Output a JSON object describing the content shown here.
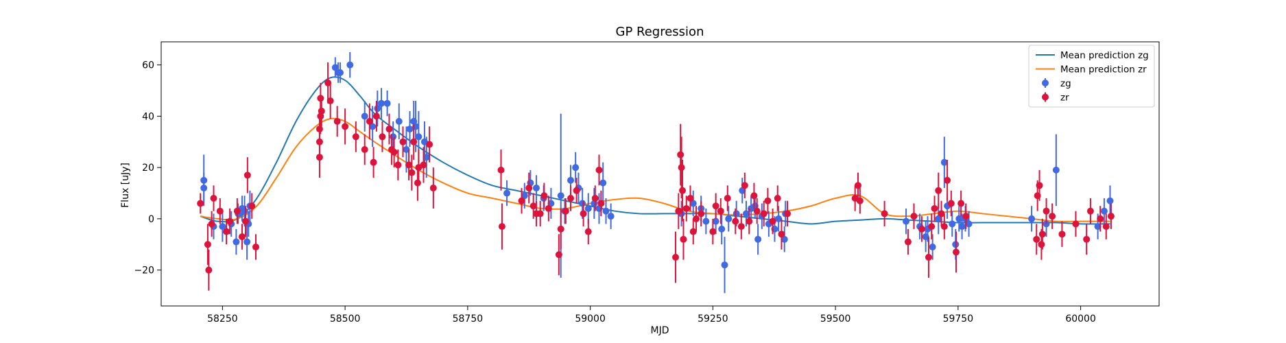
{
  "chart_data": {
    "type": "scatter",
    "title": "GP Regression",
    "xlabel": "MJD",
    "ylabel": "Flux [uJy]",
    "xlim": [
      58125,
      60160
    ],
    "ylim": [
      -34,
      69
    ],
    "xticks": [
      58250,
      58500,
      58750,
      59000,
      59250,
      59500,
      59750,
      60000
    ],
    "yticks": [
      -20,
      0,
      20,
      40,
      60
    ],
    "legend_position": "top-right",
    "grid": false,
    "colors": {
      "mean_zg": "#1f77b4",
      "mean_zr": "#ff7f0e",
      "zg": "#4169e1",
      "zr": "#dc143c"
    },
    "lines": [
      {
        "name": "Mean prediction zg",
        "x": [
          58205,
          58240,
          58280,
          58320,
          58360,
          58400,
          58440,
          58470,
          58500,
          58530,
          58560,
          58600,
          58650,
          58700,
          58750,
          58800,
          58850,
          58900,
          58950,
          59000,
          59050,
          59100,
          59150,
          59200,
          59250,
          59300,
          59350,
          59400,
          59450,
          59500,
          59550,
          59600,
          59650,
          59700,
          59750,
          59800,
          59850,
          59900,
          59950,
          60000,
          60060
        ],
        "y": [
          1,
          -1,
          0,
          8,
          22,
          38,
          50,
          55,
          54,
          48,
          41,
          35,
          28,
          22,
          17,
          13,
          11,
          9,
          7,
          5,
          3,
          2,
          2,
          2,
          2,
          1,
          0,
          -1,
          -2,
          -1,
          -0.5,
          0,
          -0.5,
          -1,
          -1.5,
          -1.5,
          -1.5,
          -1.5,
          -1.5,
          -2,
          -2
        ]
      },
      {
        "name": "Mean prediction zr",
        "x": [
          58205,
          58240,
          58280,
          58320,
          58360,
          58400,
          58440,
          58470,
          58500,
          58530,
          58560,
          58600,
          58650,
          58700,
          58750,
          58800,
          58850,
          58900,
          58950,
          59000,
          59050,
          59100,
          59150,
          59200,
          59250,
          59300,
          59350,
          59400,
          59450,
          59500,
          59550,
          59600,
          59650,
          59700,
          59750,
          59800,
          59850,
          59900,
          59950,
          60000,
          60060
        ],
        "y": [
          1,
          0,
          0,
          5,
          16,
          28,
          36,
          39,
          38,
          34,
          30,
          25,
          19,
          14,
          10,
          8,
          6,
          4,
          4,
          6,
          7.5,
          8,
          6,
          3,
          2,
          1.5,
          2,
          3,
          5,
          8,
          9,
          2,
          1,
          2,
          3,
          2,
          1,
          0,
          -1,
          -1,
          -1
        ]
      }
    ],
    "series": [
      {
        "name": "zg",
        "points": [
          [
            58212,
            15,
            10
          ],
          [
            58212,
            12,
            6
          ],
          [
            58232,
            -3,
            5
          ],
          [
            58250,
            -3,
            6
          ],
          [
            58268,
            -2,
            5
          ],
          [
            58278,
            -9,
            5
          ],
          [
            58282,
            2,
            4
          ],
          [
            58290,
            4,
            5
          ],
          [
            58295,
            3,
            6
          ],
          [
            58300,
            -9,
            7
          ],
          [
            58303,
            -2,
            5
          ],
          [
            58306,
            5,
            6
          ],
          [
            58480,
            59,
            4
          ],
          [
            58486,
            57,
            4
          ],
          [
            58490,
            57,
            4
          ],
          [
            58510,
            60,
            5
          ],
          [
            58540,
            40,
            6
          ],
          [
            58556,
            36,
            8
          ],
          [
            58566,
            43,
            7
          ],
          [
            58574,
            45,
            6
          ],
          [
            58586,
            45,
            5
          ],
          [
            58598,
            32,
            6
          ],
          [
            58610,
            38,
            7
          ],
          [
            58625,
            27,
            9
          ],
          [
            58632,
            35,
            7
          ],
          [
            58640,
            38,
            8
          ],
          [
            58644,
            36,
            10
          ],
          [
            58650,
            32,
            10
          ],
          [
            58662,
            30,
            8
          ],
          [
            58666,
            24,
            8
          ],
          [
            58830,
            10,
            5
          ],
          [
            58866,
            9,
            5
          ],
          [
            58878,
            14,
            5
          ],
          [
            58890,
            12,
            5
          ],
          [
            58905,
            8,
            5
          ],
          [
            58920,
            6,
            6
          ],
          [
            58940,
            9,
            32
          ],
          [
            58948,
            3,
            5
          ],
          [
            58960,
            15,
            6
          ],
          [
            58970,
            20,
            6
          ],
          [
            58976,
            12,
            6
          ],
          [
            58984,
            6,
            6
          ],
          [
            58996,
            4,
            6
          ],
          [
            59008,
            6,
            6
          ],
          [
            59018,
            4,
            6
          ],
          [
            59026,
            14,
            8
          ],
          [
            59032,
            3,
            5
          ],
          [
            59042,
            1,
            5
          ],
          [
            59186,
            2,
            5
          ],
          [
            59210,
            6,
            5
          ],
          [
            59226,
            4,
            5
          ],
          [
            59236,
            -1,
            5
          ],
          [
            59256,
            -1,
            5
          ],
          [
            59268,
            -4,
            6
          ],
          [
            59274,
            -18,
            11
          ],
          [
            59282,
            0,
            5
          ],
          [
            59298,
            2,
            5
          ],
          [
            59310,
            11,
            5
          ],
          [
            59318,
            2,
            5
          ],
          [
            59328,
            4,
            5
          ],
          [
            59336,
            5,
            5
          ],
          [
            59342,
            -8,
            6
          ],
          [
            59350,
            1,
            5
          ],
          [
            59364,
            -2,
            5
          ],
          [
            59376,
            -4,
            5
          ],
          [
            59384,
            0,
            5
          ],
          [
            59396,
            -8,
            5
          ],
          [
            59398,
            2,
            5
          ],
          [
            59644,
            -1,
            5
          ],
          [
            59672,
            -3,
            5
          ],
          [
            59684,
            -7,
            6
          ],
          [
            59688,
            -4,
            5
          ],
          [
            59698,
            -11,
            5
          ],
          [
            59710,
            0,
            6
          ],
          [
            59722,
            22,
            10
          ],
          [
            59728,
            5,
            5
          ],
          [
            59738,
            -2,
            5
          ],
          [
            59745,
            -10,
            6
          ],
          [
            59752,
            0,
            5
          ],
          [
            59758,
            -3,
            5
          ],
          [
            59765,
            0,
            5
          ],
          [
            59772,
            -2,
            5
          ],
          [
            59900,
            0,
            5
          ],
          [
            59930,
            -2,
            5
          ],
          [
            59950,
            19,
            14
          ],
          [
            60035,
            -3,
            5
          ],
          [
            60048,
            3,
            5
          ],
          [
            60060,
            7,
            6
          ]
        ]
      },
      {
        "name": "zr",
        "points": [
          [
            58205,
            6,
            4
          ],
          [
            58220,
            -10,
            8
          ],
          [
            58222,
            -20,
            8
          ],
          [
            58228,
            -2,
            5
          ],
          [
            58232,
            8,
            5
          ],
          [
            58245,
            3,
            5
          ],
          [
            58258,
            -5,
            5
          ],
          [
            58265,
            -1,
            5
          ],
          [
            58280,
            3,
            5
          ],
          [
            58290,
            -7,
            5
          ],
          [
            58297,
            -1,
            6
          ],
          [
            58301,
            17,
            7
          ],
          [
            58310,
            5,
            5
          ],
          [
            58318,
            -11,
            5
          ],
          [
            58448,
            24,
            8
          ],
          [
            58448,
            30,
            7
          ],
          [
            58448,
            35,
            6
          ],
          [
            58450,
            40,
            7
          ],
          [
            58450,
            47,
            6
          ],
          [
            58452,
            42,
            6
          ],
          [
            58465,
            53,
            8
          ],
          [
            58470,
            46,
            7
          ],
          [
            58484,
            38,
            6
          ],
          [
            58500,
            36,
            7
          ],
          [
            58522,
            32,
            6
          ],
          [
            58540,
            27,
            6
          ],
          [
            58550,
            38,
            7
          ],
          [
            58558,
            22,
            6
          ],
          [
            58564,
            40,
            6
          ],
          [
            58576,
            32,
            6
          ],
          [
            58590,
            35,
            6
          ],
          [
            58595,
            27,
            6
          ],
          [
            58600,
            26,
            6
          ],
          [
            58608,
            21,
            6
          ],
          [
            58618,
            30,
            6
          ],
          [
            58630,
            21,
            6
          ],
          [
            58636,
            18,
            7
          ],
          [
            58640,
            30,
            7
          ],
          [
            58648,
            14,
            7
          ],
          [
            58650,
            20,
            7
          ],
          [
            58660,
            21,
            7
          ],
          [
            58672,
            29,
            7
          ],
          [
            58680,
            12,
            8
          ],
          [
            58818,
            19,
            8
          ],
          [
            58820,
            -3,
            9
          ],
          [
            58860,
            7,
            5
          ],
          [
            58875,
            12,
            6
          ],
          [
            58884,
            5,
            5
          ],
          [
            58890,
            2,
            5
          ],
          [
            58898,
            2,
            5
          ],
          [
            58906,
            9,
            5
          ],
          [
            58915,
            4,
            5
          ],
          [
            58936,
            -14,
            8
          ],
          [
            58940,
            -4,
            8
          ],
          [
            58950,
            3,
            5
          ],
          [
            58960,
            8,
            5
          ],
          [
            58972,
            11,
            5
          ],
          [
            58986,
            2,
            5
          ],
          [
            58996,
            -5,
            5
          ],
          [
            59010,
            8,
            5
          ],
          [
            59018,
            19,
            6
          ],
          [
            59022,
            6,
            5
          ],
          [
            59174,
            -15,
            10
          ],
          [
            59180,
            3,
            7
          ],
          [
            59184,
            25,
            12
          ],
          [
            59186,
            20,
            12
          ],
          [
            59188,
            11,
            12
          ],
          [
            59190,
            -8,
            8
          ],
          [
            59196,
            4,
            5
          ],
          [
            59204,
            8,
            5
          ],
          [
            59210,
            -5,
            5
          ],
          [
            59216,
            0,
            5
          ],
          [
            59226,
            2,
            5
          ],
          [
            59250,
            -5,
            5
          ],
          [
            59256,
            5,
            5
          ],
          [
            59266,
            3,
            5
          ],
          [
            59280,
            8,
            5
          ],
          [
            59296,
            -1,
            5
          ],
          [
            59308,
            -3,
            5
          ],
          [
            59315,
            13,
            5
          ],
          [
            59324,
            -1,
            5
          ],
          [
            59334,
            9,
            5
          ],
          [
            59340,
            3,
            5
          ],
          [
            59354,
            2,
            5
          ],
          [
            59362,
            7,
            5
          ],
          [
            59372,
            -1,
            5
          ],
          [
            59382,
            8,
            5
          ],
          [
            59390,
            -6,
            6
          ],
          [
            59402,
            2,
            5
          ],
          [
            59540,
            8,
            5
          ],
          [
            59546,
            13,
            5
          ],
          [
            59550,
            7,
            5
          ],
          [
            59600,
            2,
            5
          ],
          [
            59648,
            -9,
            5
          ],
          [
            59660,
            1,
            5
          ],
          [
            59676,
            -4,
            5
          ],
          [
            59690,
            -15,
            8
          ],
          [
            59696,
            -3,
            5
          ],
          [
            59702,
            4,
            5
          ],
          [
            59710,
            11,
            7
          ],
          [
            59716,
            2,
            5
          ],
          [
            59722,
            -3,
            5
          ],
          [
            59728,
            15,
            8
          ],
          [
            59736,
            6,
            5
          ],
          [
            59746,
            -13,
            8
          ],
          [
            59756,
            6,
            5
          ],
          [
            59766,
            1,
            5
          ],
          [
            59910,
            -8,
            6
          ],
          [
            59912,
            9,
            6
          ],
          [
            59916,
            13,
            6
          ],
          [
            59920,
            -10,
            6
          ],
          [
            59922,
            -6,
            6
          ],
          [
            59930,
            3,
            5
          ],
          [
            59942,
            1,
            5
          ],
          [
            59962,
            -6,
            5
          ],
          [
            59990,
            -2,
            5
          ],
          [
            60012,
            -8,
            6
          ],
          [
            60020,
            3,
            5
          ],
          [
            60040,
            0,
            5
          ],
          [
            60052,
            -3,
            5
          ],
          [
            60062,
            1,
            5
          ]
        ]
      }
    ]
  }
}
